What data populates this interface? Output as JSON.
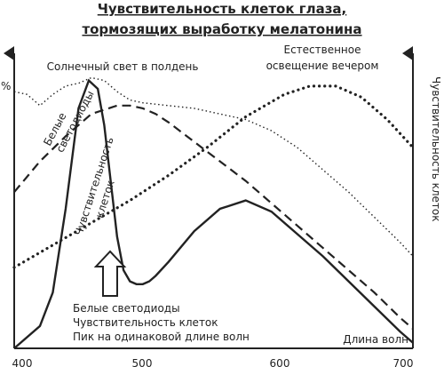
{
  "chart_data": {
    "type": "line",
    "title_lines": [
      "Чувствительность клеток глаза,",
      "тормозящих выработку мелатонина"
    ],
    "left_axis_label": "%",
    "right_axis_label": "Чувствительность клеток",
    "x_axis_label": "Длина волн",
    "x_ticks": [
      400,
      500,
      600,
      700
    ],
    "xlim": [
      400,
      710
    ],
    "ylim": [
      0,
      100
    ],
    "labels": {
      "sunlight": "Солнечный свет в полдень",
      "evening": "Естественное освещение вечером",
      "led": "Белые светодиоды",
      "cells": "Чувствительность клеток"
    },
    "peak_note_lines": [
      "Белые светодиоды",
      "Чувствительность клеток",
      "Пик на одинаковой длине волн"
    ],
    "colors": {
      "ink": "#222222",
      "arrow_fill": "#ffffff"
    },
    "series": [
      {
        "name": "Белые светодиоды",
        "style": "solid",
        "x": [
          400,
          420,
          430,
          440,
          450,
          458,
          465,
          470,
          475,
          480,
          485,
          490,
          495,
          500,
          505,
          510,
          520,
          540,
          560,
          580,
          600,
          620,
          640,
          660,
          680,
          700,
          710
        ],
        "y": [
          0,
          8,
          20,
          50,
          86,
          96,
          93,
          80,
          60,
          40,
          28,
          24,
          23,
          23,
          24,
          26,
          31,
          42,
          50,
          53,
          49,
          41,
          33,
          24,
          15,
          6,
          2
        ]
      },
      {
        "name": "Чувствительность клеток",
        "style": "dashed",
        "x": [
          400,
          420,
          440,
          460,
          480,
          490,
          500,
          510,
          520,
          540,
          560,
          580,
          600,
          620,
          640,
          660,
          680,
          700,
          710
        ],
        "y": [
          56,
          67,
          76,
          84,
          87,
          87,
          86,
          84,
          81,
          74,
          67,
          60,
          52,
          44,
          36,
          28,
          20,
          11,
          7
        ]
      },
      {
        "name": "Солнечный свет в полдень",
        "style": "dotted-fine",
        "x": [
          400,
          410,
          420,
          430,
          440,
          450,
          460,
          470,
          480,
          490,
          500,
          520,
          540,
          560,
          580,
          600,
          620,
          640,
          660,
          680,
          700,
          710
        ],
        "y": [
          92,
          91,
          87,
          91,
          94,
          95,
          97,
          96,
          92,
          89,
          88,
          87,
          86,
          84,
          82,
          78,
          72,
          64,
          56,
          47,
          38,
          33
        ]
      },
      {
        "name": "Естественное освещение вечером",
        "style": "dotted-bold",
        "x": [
          400,
          430,
          460,
          490,
          520,
          550,
          580,
          610,
          630,
          650,
          670,
          690,
          710
        ],
        "y": [
          29,
          37,
          45,
          53,
          62,
          72,
          83,
          91,
          94,
          94,
          90,
          82,
          72
        ]
      }
    ]
  }
}
